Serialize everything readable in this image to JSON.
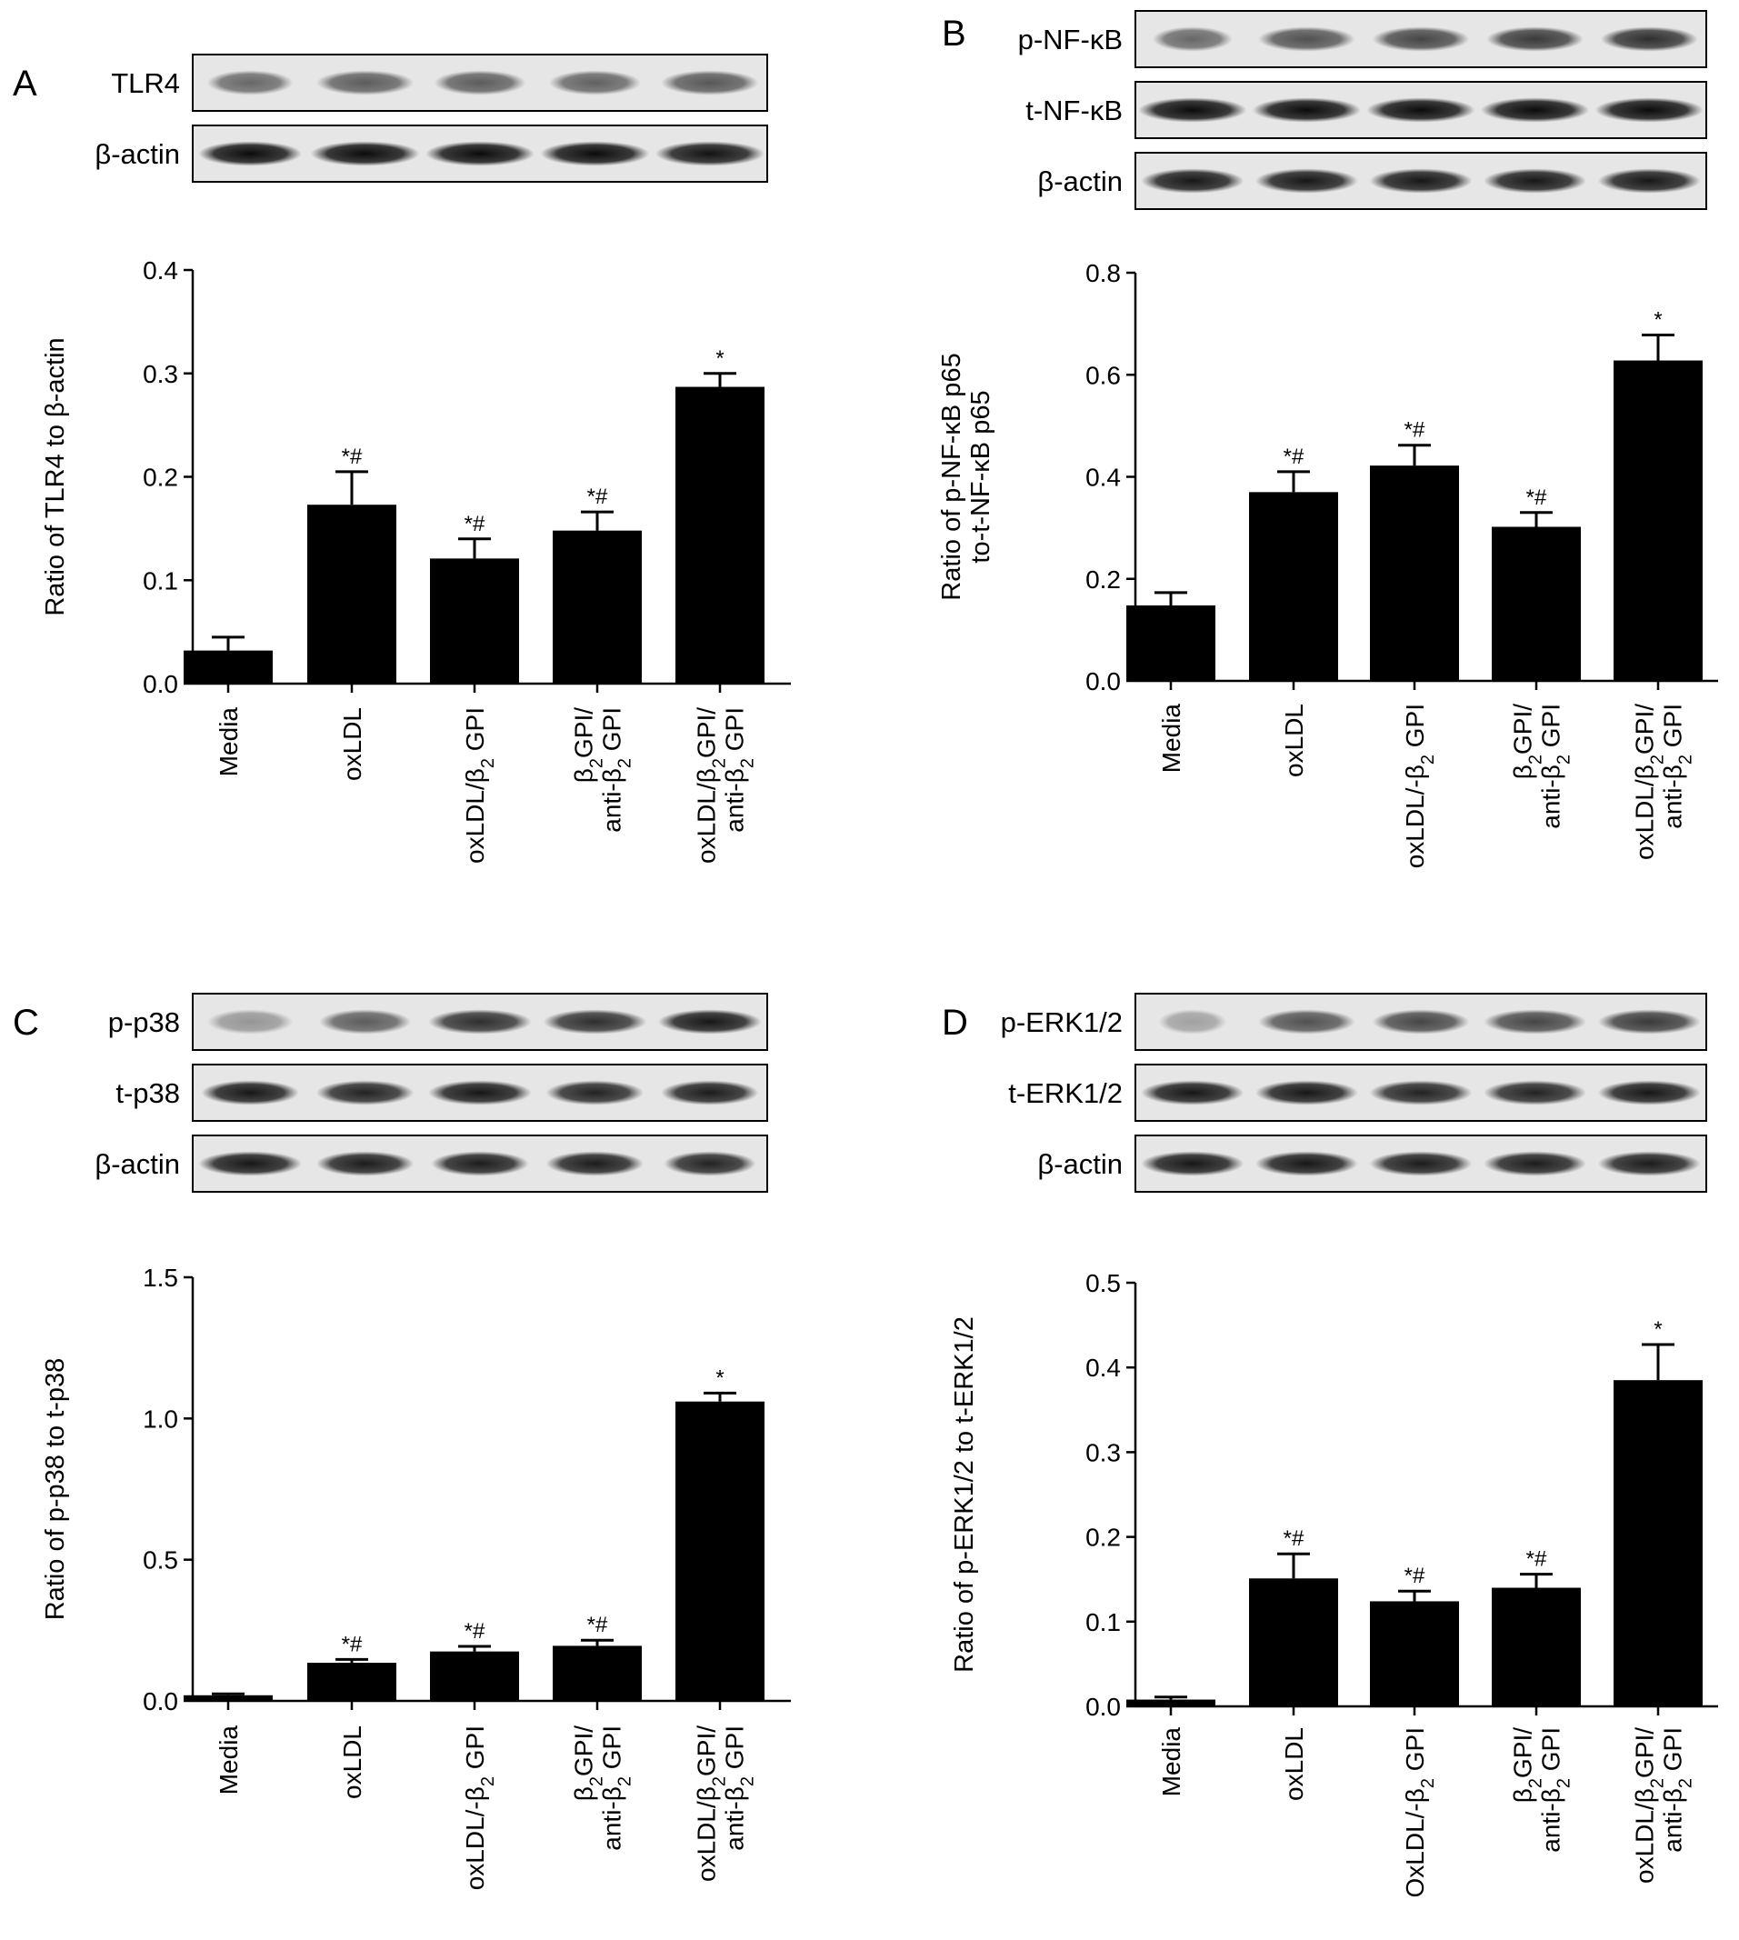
{
  "chart_data": [
    {
      "panel": "A",
      "type": "bar",
      "blots": [
        "TLR4",
        "β-actin"
      ],
      "blot_bands": [
        {
          "label": "TLR4",
          "width": [
            0.75,
            0.85,
            0.8,
            0.8,
            0.85
          ],
          "intensity": [
            0.55,
            0.6,
            0.6,
            0.58,
            0.62
          ]
        },
        {
          "label": "β-actin",
          "width": [
            0.9,
            0.95,
            0.95,
            0.95,
            0.95
          ],
          "intensity": [
            0.95,
            0.95,
            0.95,
            0.95,
            0.92
          ]
        }
      ],
      "categories": [
        [
          "Media"
        ],
        [
          "oxLDL"
        ],
        [
          "oxLDL/β|2| GPI"
        ],
        [
          "β|2|GPI/",
          "anti-β|2| GPI"
        ],
        [
          "oxLDL/β|2|GPI/",
          "anti-β|2| GPI"
        ]
      ],
      "values": [
        0.032,
        0.173,
        0.121,
        0.148,
        0.287
      ],
      "errors": [
        0.013,
        0.032,
        0.019,
        0.018,
        0.013
      ],
      "annotations": [
        "",
        "*#",
        "*#",
        "*#",
        "*"
      ],
      "ylabel": [
        "Ratio of TLR4 to β-actin"
      ],
      "ylim": [
        0,
        0.4
      ],
      "yticks": [
        0.0,
        0.1,
        0.2,
        0.3,
        0.4
      ],
      "ytick_labels": [
        "0.0",
        "0.1",
        "0.2",
        "0.3",
        "0.4"
      ],
      "grid": false
    },
    {
      "panel": "B",
      "type": "bar",
      "blots": [
        "p-NF-κB",
        "t-NF-κB",
        "β-actin"
      ],
      "blot_bands": [
        {
          "label": "p-NF-κB",
          "width": [
            0.7,
            0.85,
            0.85,
            0.85,
            0.85
          ],
          "intensity": [
            0.55,
            0.65,
            0.7,
            0.75,
            0.8
          ]
        },
        {
          "label": "t-NF-κB",
          "width": [
            0.95,
            0.95,
            0.95,
            0.95,
            0.95
          ],
          "intensity": [
            0.95,
            0.95,
            0.95,
            0.95,
            0.95
          ]
        },
        {
          "label": "β-actin",
          "width": [
            0.9,
            0.9,
            0.9,
            0.9,
            0.9
          ],
          "intensity": [
            0.9,
            0.9,
            0.9,
            0.9,
            0.9
          ]
        }
      ],
      "categories": [
        [
          "Media"
        ],
        [
          "oxLDL"
        ],
        [
          "oxLDL/-β|2| GPI"
        ],
        [
          "β|2|GPI/",
          "anti-β|2| GPI"
        ],
        [
          "oxLDL/β|2|GPI/",
          "anti-β|2| GPI"
        ]
      ],
      "values": [
        0.148,
        0.37,
        0.422,
        0.302,
        0.628
      ],
      "errors": [
        0.025,
        0.04,
        0.04,
        0.028,
        0.05
      ],
      "annotations": [
        "",
        "*#",
        "*#",
        "*#",
        "*"
      ],
      "ylabel": [
        "Ratio of p-NF-κB p65",
        "to-t-NF-κB p65"
      ],
      "ylim": [
        0,
        0.8
      ],
      "yticks": [
        0.0,
        0.2,
        0.4,
        0.6,
        0.8
      ],
      "ytick_labels": [
        "0.0",
        "0.2",
        "0.4",
        "0.6",
        "0.8"
      ],
      "grid": false
    },
    {
      "panel": "C",
      "type": "bar",
      "blots": [
        "p-p38",
        "t-p38",
        "β-actin"
      ],
      "blot_bands": [
        {
          "label": "p-p38",
          "width": [
            0.75,
            0.8,
            0.9,
            0.9,
            0.9
          ],
          "intensity": [
            0.35,
            0.6,
            0.8,
            0.8,
            0.9
          ]
        },
        {
          "label": "t-p38",
          "width": [
            0.85,
            0.85,
            0.9,
            0.85,
            0.85
          ],
          "intensity": [
            0.9,
            0.85,
            0.9,
            0.85,
            0.88
          ]
        },
        {
          "label": "β-actin",
          "width": [
            0.9,
            0.85,
            0.85,
            0.85,
            0.8
          ],
          "intensity": [
            0.9,
            0.88,
            0.88,
            0.88,
            0.85
          ]
        }
      ],
      "categories": [
        [
          "Media"
        ],
        [
          "oxLDL"
        ],
        [
          "oxLDL/-β|2| GPI"
        ],
        [
          "β|2|GPI/",
          "anti-β|2| GPI"
        ],
        [
          "oxLDL/β|2|GPI/",
          "anti-β|2| GPI"
        ]
      ],
      "values": [
        0.02,
        0.135,
        0.175,
        0.195,
        1.06
      ],
      "errors": [
        0.005,
        0.012,
        0.018,
        0.02,
        0.03
      ],
      "annotations": [
        "",
        "*#",
        "*#",
        "*#",
        "*"
      ],
      "ylabel": [
        "Ratio of p-p38 to t-p38"
      ],
      "ylim": [
        0,
        1.5
      ],
      "yticks": [
        0.0,
        0.5,
        1.0,
        1.5
      ],
      "ytick_labels": [
        "0.0",
        "0.5",
        "1.0",
        "1.5"
      ],
      "grid": false
    },
    {
      "panel": "D",
      "type": "bar",
      "blots": [
        "p-ERK1/2",
        "t-ERK1/2",
        "β-actin"
      ],
      "blot_bands": [
        {
          "label": "p-ERK1/2",
          "width": [
            0.6,
            0.85,
            0.85,
            0.9,
            0.9
          ],
          "intensity": [
            0.3,
            0.65,
            0.7,
            0.7,
            0.75
          ]
        },
        {
          "label": "t-ERK1/2",
          "width": [
            0.9,
            0.9,
            0.9,
            0.9,
            0.9
          ],
          "intensity": [
            0.9,
            0.9,
            0.85,
            0.85,
            0.9
          ]
        },
        {
          "label": "β-actin",
          "width": [
            0.9,
            0.9,
            0.9,
            0.9,
            0.9
          ],
          "intensity": [
            0.9,
            0.9,
            0.88,
            0.88,
            0.88
          ]
        }
      ],
      "categories": [
        [
          "Media"
        ],
        [
          "oxLDL"
        ],
        [
          "OxLDL/-β|2| GPI"
        ],
        [
          "β|2|GPI/",
          "anti-β|2| GPI"
        ],
        [
          "oxLDL/β|2|GPI/",
          "anti-β|2| GPI"
        ]
      ],
      "values": [
        0.008,
        0.151,
        0.124,
        0.14,
        0.385
      ],
      "errors": [
        0.003,
        0.029,
        0.012,
        0.016,
        0.042
      ],
      "annotations": [
        "",
        "*#",
        "*#",
        "*#",
        "*"
      ],
      "ylabel": [
        "Ratio of p-ERK1/2 to t-ERK1/2"
      ],
      "ylim": [
        0,
        0.5
      ],
      "yticks": [
        0.0,
        0.1,
        0.2,
        0.3,
        0.4,
        0.5
      ],
      "ytick_labels": [
        "0.0",
        "0.1",
        "0.2",
        "0.3",
        "0.4",
        "0.5"
      ],
      "grid": false
    }
  ]
}
